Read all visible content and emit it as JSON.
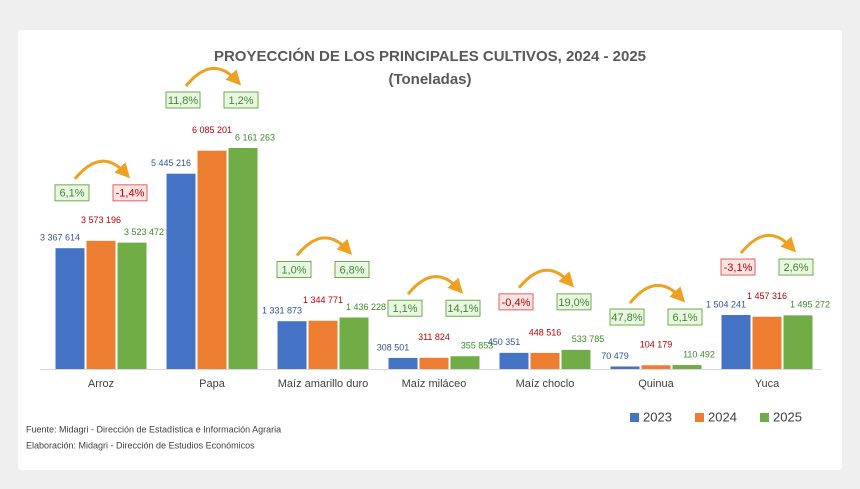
{
  "chart_data": {
    "type": "bar",
    "title": "PROYECCIÓN DE LOS PRINCIPALES CULTIVOS, 2024 - 2025",
    "subtitle": "(Toneladas)",
    "categories": [
      "Arroz",
      "Papa",
      "Maíz amarillo duro",
      "Maíz miláceo",
      "Maíz choclo",
      "Quinua",
      "Yuca"
    ],
    "series": [
      {
        "name": "2023",
        "color": "#4472c4",
        "label_color": "#2f5597",
        "values": [
          3367614,
          5445216,
          1331873,
          308501,
          450351,
          70479,
          1504241
        ],
        "value_labels": [
          "3 367 614",
          "5 445 216",
          "1 331 873",
          "308 501",
          "450 351",
          "70 479",
          "1 504 241"
        ]
      },
      {
        "name": "2024",
        "color": "#ed7d31",
        "label_color": "#c00000",
        "values": [
          3573196,
          6085201,
          1344771,
          311824,
          448516,
          104179,
          1457316
        ],
        "value_labels": [
          "3 573 196",
          "6 085 201",
          "1 344 771",
          "311 824",
          "448 516",
          "104 179",
          "1 457 316"
        ]
      },
      {
        "name": "2025",
        "color": "#70ad47",
        "label_color": "#3d8b2a",
        "values": [
          3523472,
          6161263,
          1436228,
          355853,
          533785,
          110492,
          1495272
        ],
        "value_labels": [
          "3 523 472",
          "6 161 263",
          "1 436 228",
          "355 853",
          "533 785",
          "110 492",
          "1 495 272"
        ]
      }
    ],
    "growth": [
      {
        "values": [
          6.1,
          -1.4
        ],
        "value_labels": [
          "6,1%",
          "-1,4%"
        ]
      },
      {
        "values": [
          11.8,
          1.2
        ],
        "value_labels": [
          "11,8%",
          "1,2%"
        ]
      },
      {
        "values": [
          1.0,
          6.8
        ],
        "value_labels": [
          "1,0%",
          "6,8%"
        ]
      },
      {
        "values": [
          1.1,
          14.1
        ],
        "value_labels": [
          "1,1%",
          "14,1%"
        ]
      },
      {
        "values": [
          -0.4,
          19.0
        ],
        "value_labels": [
          "-0,4%",
          "19,0%"
        ]
      },
      {
        "values": [
          47.8,
          6.1
        ],
        "value_labels": [
          "47,8%",
          "6,1%"
        ]
      },
      {
        "values": [
          -3.1,
          2.6
        ],
        "value_labels": [
          "-3,1%",
          "2,6%"
        ]
      }
    ],
    "source": "Fuente: Midagri - Dirección de Estadística e Información Agraria",
    "credit": "Elaboración: Midagri - Dirección de Estudios Económicos",
    "legend": "bottom-right"
  }
}
